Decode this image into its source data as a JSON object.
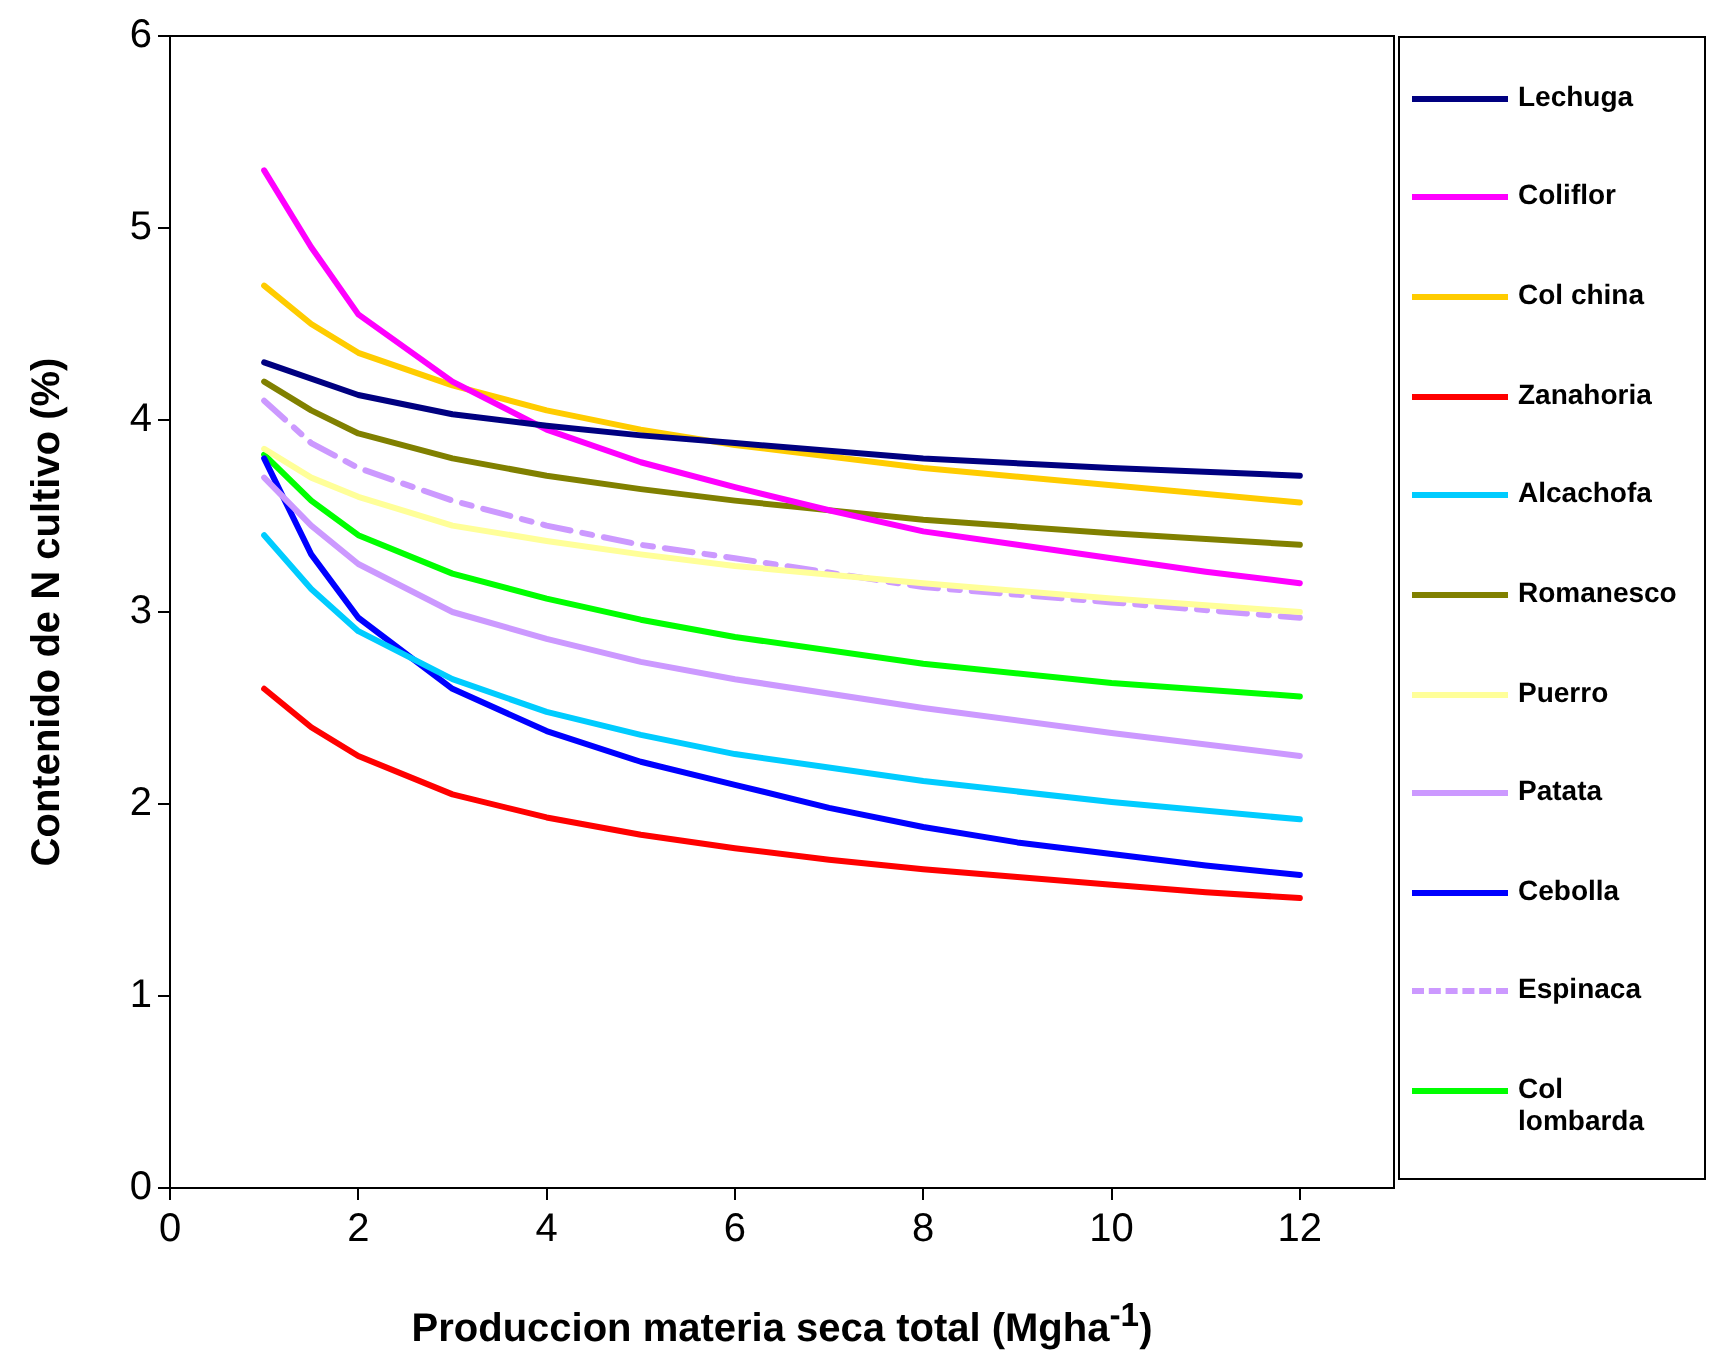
{
  "chart_data": {
    "type": "line",
    "xlabel": "Produccion materia seca total (Mgha$^{-1}$)",
    "ylabel": "Contenido de N cultivo (%)",
    "xlim": [
      0,
      13
    ],
    "xticks": [
      0,
      2,
      4,
      6,
      8,
      10,
      12
    ],
    "ylim": [
      0,
      6
    ],
    "yticks": [
      0,
      1,
      2,
      3,
      4,
      5,
      6
    ],
    "grid": false,
    "legend": "right",
    "marker": "none",
    "series": [
      {
        "name": "Lechuga",
        "color": "#000080",
        "x": [
          1,
          2,
          3,
          4,
          5,
          6,
          8,
          10,
          12
        ],
        "values": [
          4.3,
          4.13,
          4.03,
          3.97,
          3.92,
          3.88,
          3.8,
          3.75,
          3.71
        ]
      },
      {
        "name": "Coliflor",
        "color": "#ff00ff",
        "x": [
          1,
          1.5,
          2,
          3,
          4,
          5,
          6,
          7,
          8,
          9,
          10,
          11,
          12
        ],
        "values": [
          5.3,
          4.9,
          4.55,
          4.2,
          3.95,
          3.78,
          3.65,
          3.53,
          3.42,
          3.35,
          3.28,
          3.21,
          3.15
        ]
      },
      {
        "name": "Col china",
        "color": "#ffcc00",
        "x": [
          1,
          1.5,
          2,
          3,
          4,
          5,
          6,
          8,
          10,
          12
        ],
        "values": [
          4.7,
          4.5,
          4.35,
          4.18,
          4.05,
          3.95,
          3.87,
          3.75,
          3.66,
          3.57
        ]
      },
      {
        "name": "Zanahoria",
        "color": "#ff0000",
        "x": [
          1,
          1.5,
          2,
          3,
          4,
          5,
          6,
          7,
          8,
          9,
          10,
          11,
          12
        ],
        "values": [
          2.6,
          2.4,
          2.25,
          2.05,
          1.93,
          1.84,
          1.77,
          1.71,
          1.66,
          1.62,
          1.58,
          1.54,
          1.51
        ]
      },
      {
        "name": "Alcachofa",
        "color": "#00ccff",
        "x": [
          1,
          1.5,
          2,
          3,
          4,
          5,
          6,
          8,
          10,
          12
        ],
        "values": [
          3.4,
          3.12,
          2.9,
          2.65,
          2.48,
          2.36,
          2.26,
          2.12,
          2.01,
          1.92
        ]
      },
      {
        "name": "Romanesco",
        "color": "#808000",
        "x": [
          1,
          1.5,
          2,
          3,
          4,
          5,
          6,
          8,
          10,
          12
        ],
        "values": [
          4.2,
          4.05,
          3.93,
          3.8,
          3.71,
          3.64,
          3.58,
          3.48,
          3.41,
          3.35
        ]
      },
      {
        "name": "Puerro",
        "color": "#ffff99",
        "x": [
          1,
          1.5,
          2,
          3,
          4,
          5,
          6,
          8,
          10,
          12
        ],
        "values": [
          3.85,
          3.7,
          3.6,
          3.45,
          3.37,
          3.3,
          3.24,
          3.15,
          3.07,
          3.0
        ]
      },
      {
        "name": "Patata",
        "color": "#cc99ff",
        "x": [
          1,
          1.5,
          2,
          3,
          4,
          5,
          6,
          8,
          10,
          12
        ],
        "values": [
          3.7,
          3.45,
          3.25,
          3.0,
          2.86,
          2.74,
          2.65,
          2.5,
          2.37,
          2.25
        ]
      },
      {
        "name": "Cebolla",
        "color": "#0000ff",
        "x": [
          1,
          1.5,
          2,
          3,
          4,
          5,
          6,
          7,
          8,
          9,
          10,
          11,
          12
        ],
        "values": [
          3.8,
          3.3,
          2.97,
          2.6,
          2.38,
          2.22,
          2.1,
          1.98,
          1.88,
          1.8,
          1.74,
          1.68,
          1.63
        ]
      },
      {
        "name": "Espinaca",
        "color": "#cc99ff",
        "line_style": "dashed",
        "x": [
          1,
          1.5,
          2,
          3,
          4,
          5,
          6,
          8,
          10,
          12
        ],
        "values": [
          4.1,
          3.88,
          3.75,
          3.58,
          3.45,
          3.35,
          3.28,
          3.13,
          3.05,
          2.97
        ]
      },
      {
        "name": "Col lombarda",
        "color": "#00ff00",
        "x": [
          1,
          1.5,
          2,
          3,
          4,
          5,
          6,
          8,
          10,
          12
        ],
        "values": [
          3.82,
          3.58,
          3.4,
          3.2,
          3.07,
          2.96,
          2.87,
          2.73,
          2.63,
          2.56
        ]
      }
    ]
  }
}
